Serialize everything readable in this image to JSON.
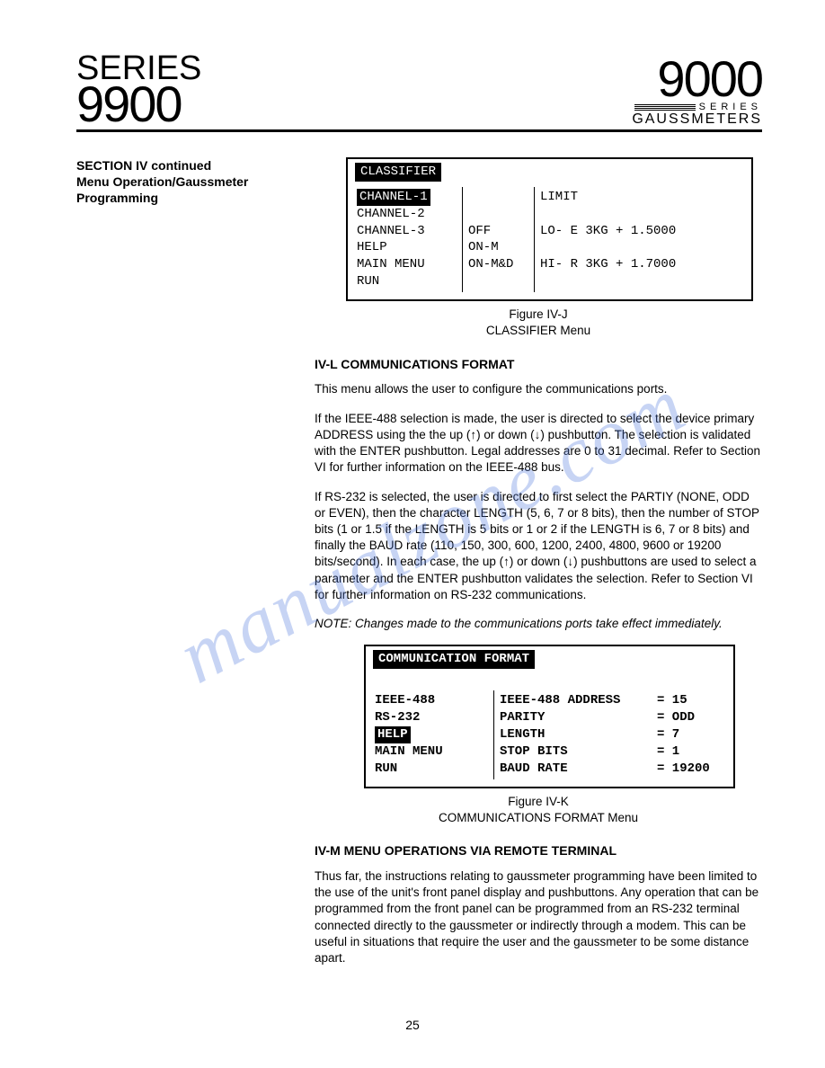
{
  "header": {
    "left_top": "SERIES",
    "left_num": "9900",
    "right_num": "9000",
    "right_series": "SERIES",
    "right_label": "GAUSSMETERS"
  },
  "section_label_l1": "SECTION IV continued",
  "section_label_l2": "Menu Operation/Gaussmeter",
  "section_label_l3": "Programming",
  "figJ": {
    "title": "CLASSIFIER",
    "col1": [
      "CHANNEL-1",
      "CHANNEL-2",
      "CHANNEL-3",
      "HELP",
      "MAIN MENU",
      "RUN"
    ],
    "col2": [
      "",
      "",
      "OFF",
      "ON-M",
      "ON-M&D",
      ""
    ],
    "col3_header": "LIMIT",
    "col3_lo": "LO- E  3KG + 1.5000",
    "col3_hi": "HI- R  3KG + 1.7000",
    "caption_l1": "Figure IV-J",
    "caption_l2": "CLASSIFIER Menu"
  },
  "sec_ivl": {
    "head": "IV-L  COMMUNICATIONS  FORMAT",
    "p1": "This menu allows the user to configure the communications ports.",
    "p2": "If the IEEE-488 selection is made, the user is directed to select the device primary ADDRESS using the the up (↑) or down (↓) pushbutton. The selection is validated with the ENTER pushbutton. Legal addresses are 0 to 31 decimal. Refer to Section VI for further information on the IEEE-488 bus.",
    "p3": "If RS-232 is selected, the user is directed to first select the PARTIY (NONE, ODD or EVEN), then the character LENGTH (5, 6, 7 or 8 bits), then the number of STOP bits (1 or 1.5 if the LENGTH is 5 bits or 1 or 2 if the LENGTH is 6, 7 or 8 bits) and finally the BAUD rate (110, 150, 300, 600, 1200, 2400, 4800, 9600 or 19200 bits/second). In each case, the up (↑) or down (↓) pushbuttons are used to select a parameter and the ENTER pushbutton validates the selection. Refer to Section VI for further information on RS-232 communications.",
    "note": "NOTE: Changes made to the communications ports take effect immediately."
  },
  "figK": {
    "title": "COMMUNICATION FORMAT",
    "col1": [
      "IEEE-488",
      "RS-232",
      "HELP",
      "MAIN MENU",
      "RUN"
    ],
    "rows": [
      {
        "label": "IEEE-488 ADDRESS",
        "val": "= 15"
      },
      {
        "label": "PARITY",
        "val": "= ODD"
      },
      {
        "label": "LENGTH",
        "val": "= 7"
      },
      {
        "label": "STOP BITS",
        "val": "= 1"
      },
      {
        "label": "BAUD RATE",
        "val": "= 19200"
      }
    ],
    "caption_l1": "Figure IV-K",
    "caption_l2": "COMMUNICATIONS FORMAT Menu"
  },
  "sec_ivm": {
    "head": "IV-M  MENU  OPERATIONS  VIA  REMOTE  TERMINAL",
    "p1": "Thus far, the instructions relating to gaussmeter programming have been limited to the use of the unit's front panel display and pushbuttons. Any operation that can be programmed from the front panel can be programmed from an RS-232 terminal connected directly to the gaussmeter or indirectly through a modem. This can be useful in situations that require the user and the gaussmeter to be some distance apart."
  },
  "page_number": "25",
  "watermark": "manualzone.com"
}
